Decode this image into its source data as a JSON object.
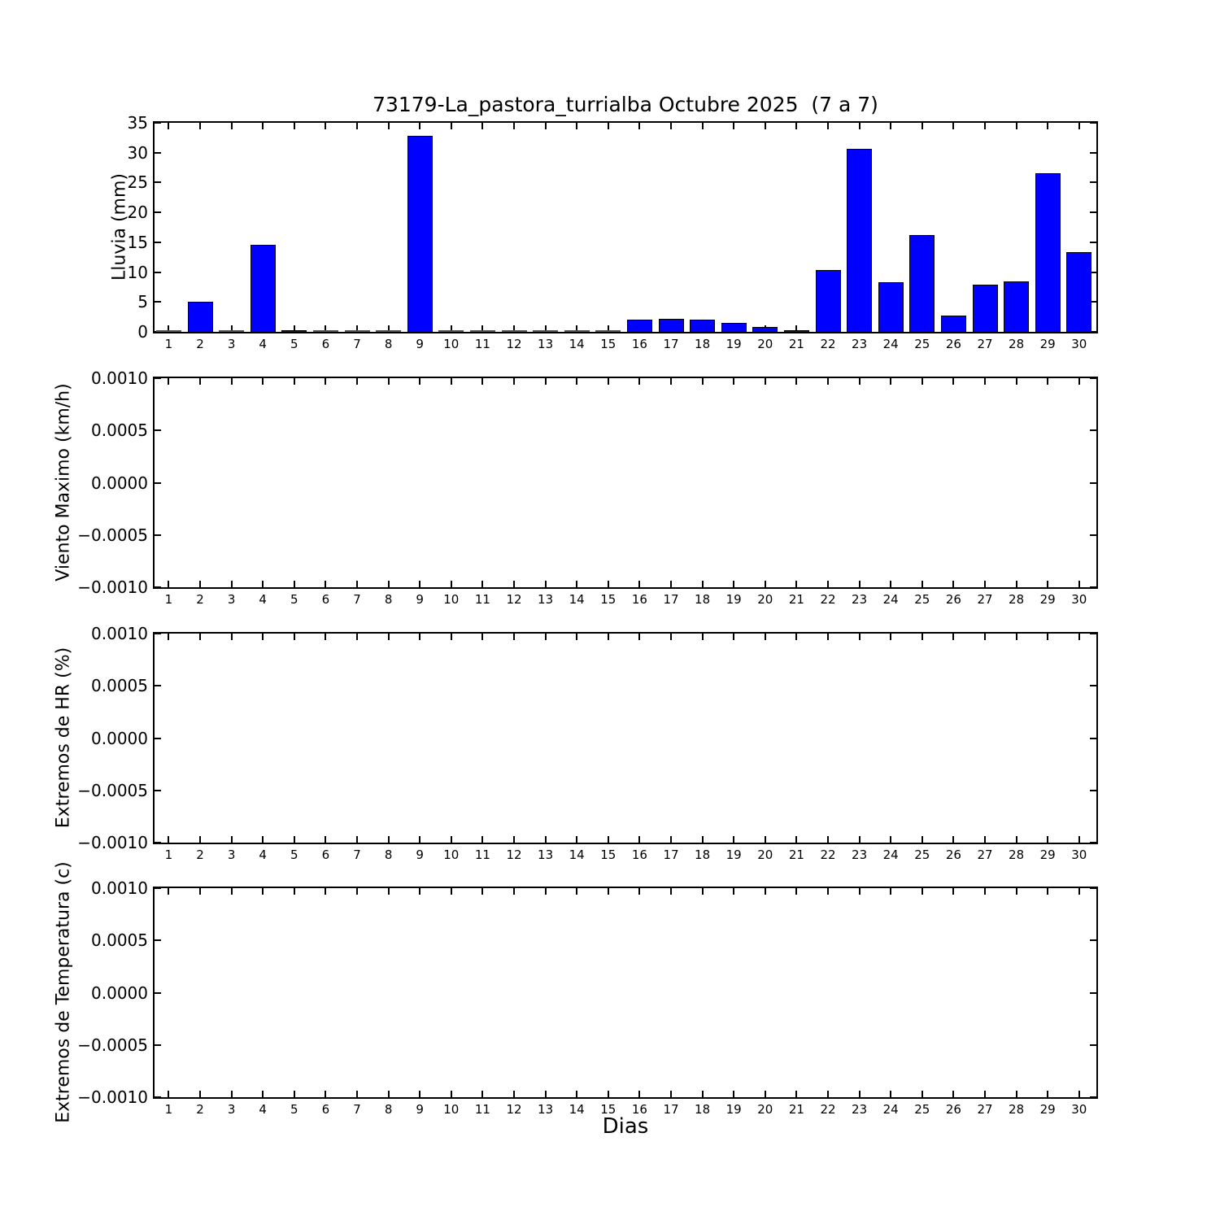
{
  "figure": {
    "title": "73179-La_pastora_turrialba Octubre 2025  (7 a 7)",
    "xlabel": "Dias",
    "background_color": "#ffffff",
    "text_color": "#000000",
    "bar_color": "#0000ff",
    "bar_edge_color": "#000000"
  },
  "chart_data": [
    {
      "type": "bar",
      "title": "73179-La_pastora_turrialba Octubre 2025  (7 a 7)",
      "ylabel": "Lluvia (mm)",
      "xlabel": "",
      "categories": [
        1,
        2,
        3,
        4,
        5,
        6,
        7,
        8,
        9,
        10,
        11,
        12,
        13,
        14,
        15,
        16,
        17,
        18,
        19,
        20,
        21,
        22,
        23,
        24,
        25,
        26,
        27,
        28,
        29,
        30
      ],
      "values": [
        0,
        5.0,
        0,
        14.6,
        0.3,
        0,
        0,
        0,
        32.8,
        0,
        0,
        0,
        0,
        0,
        0,
        2.0,
        2.2,
        2.0,
        1.5,
        0.8,
        0.3,
        10.4,
        30.7,
        8.3,
        16.2,
        2.7,
        7.9,
        8.5,
        26.5,
        13.4
      ],
      "ylim": [
        0,
        35
      ],
      "yticks": [
        0,
        5,
        10,
        15,
        20,
        25,
        30,
        35
      ],
      "ytick_labels": [
        "0",
        "5",
        "10",
        "15",
        "20",
        "25",
        "30",
        "35"
      ],
      "grid": false,
      "legend": "none",
      "bar_color": "#0000ff"
    },
    {
      "type": "bar",
      "title": "",
      "ylabel": "Viento Maximo (km/h)",
      "xlabel": "",
      "categories": [
        1,
        2,
        3,
        4,
        5,
        6,
        7,
        8,
        9,
        10,
        11,
        12,
        13,
        14,
        15,
        16,
        17,
        18,
        19,
        20,
        21,
        22,
        23,
        24,
        25,
        26,
        27,
        28,
        29,
        30
      ],
      "values": [],
      "ylim": [
        -0.001,
        0.001
      ],
      "yticks": [
        -0.001,
        -0.0005,
        0.0,
        0.0005,
        0.001
      ],
      "ytick_labels": [
        "−0.0010",
        "−0.0005",
        "0.0000",
        "0.0005",
        "0.0010"
      ],
      "grid": false,
      "legend": "none"
    },
    {
      "type": "bar",
      "title": "",
      "ylabel": "Extremos de HR (%)",
      "xlabel": "",
      "categories": [
        1,
        2,
        3,
        4,
        5,
        6,
        7,
        8,
        9,
        10,
        11,
        12,
        13,
        14,
        15,
        16,
        17,
        18,
        19,
        20,
        21,
        22,
        23,
        24,
        25,
        26,
        27,
        28,
        29,
        30
      ],
      "values": [],
      "ylim": [
        -0.001,
        0.001
      ],
      "yticks": [
        -0.001,
        -0.0005,
        0.0,
        0.0005,
        0.001
      ],
      "ytick_labels": [
        "−0.0010",
        "−0.0005",
        "0.0000",
        "0.0005",
        "0.0010"
      ],
      "grid": false,
      "legend": "none"
    },
    {
      "type": "bar",
      "title": "",
      "ylabel": "Extremos de Temperatura (c)",
      "xlabel": "Dias",
      "categories": [
        1,
        2,
        3,
        4,
        5,
        6,
        7,
        8,
        9,
        10,
        11,
        12,
        13,
        14,
        15,
        16,
        17,
        18,
        19,
        20,
        21,
        22,
        23,
        24,
        25,
        26,
        27,
        28,
        29,
        30
      ],
      "values": [],
      "ylim": [
        -0.001,
        0.001
      ],
      "yticks": [
        -0.001,
        -0.0005,
        0.0,
        0.0005,
        0.001
      ],
      "ytick_labels": [
        "−0.0010",
        "−0.0005",
        "0.0000",
        "0.0005",
        "0.0010"
      ],
      "grid": false,
      "legend": "none"
    }
  ]
}
